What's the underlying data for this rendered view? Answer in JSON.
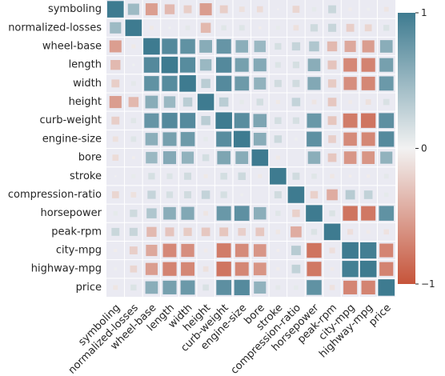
{
  "chart_data": {
    "type": "heatmap",
    "variant": "size-and-color correlation matrix",
    "variables": [
      "symboling",
      "normalized-losses",
      "wheel-base",
      "length",
      "width",
      "height",
      "curb-weight",
      "engine-size",
      "bore",
      "stroke",
      "compression-ratio",
      "horsepower",
      "peak-rpm",
      "city-mpg",
      "highway-mpg",
      "price"
    ],
    "values": [
      [
        1.0,
        0.47,
        -0.53,
        -0.36,
        -0.23,
        -0.54,
        -0.23,
        -0.11,
        -0.14,
        -0.01,
        -0.18,
        0.07,
        0.23,
        -0.04,
        0.03,
        -0.08
      ],
      [
        0.47,
        1.0,
        -0.06,
        0.02,
        0.08,
        -0.37,
        0.1,
        0.11,
        -0.03,
        0.06,
        -0.11,
        0.2,
        0.24,
        -0.23,
        -0.18,
        0.13
      ],
      [
        -0.53,
        -0.06,
        1.0,
        0.88,
        0.81,
        0.59,
        0.78,
        0.57,
        0.49,
        0.16,
        0.25,
        0.37,
        -0.36,
        -0.47,
        -0.54,
        0.58
      ],
      [
        -0.36,
        0.02,
        0.88,
        1.0,
        0.86,
        0.49,
        0.88,
        0.69,
        0.61,
        0.12,
        0.16,
        0.58,
        -0.29,
        -0.67,
        -0.7,
        0.69
      ],
      [
        -0.23,
        0.08,
        0.81,
        0.86,
        1.0,
        0.31,
        0.87,
        0.74,
        0.54,
        0.19,
        0.19,
        0.62,
        -0.25,
        -0.63,
        -0.68,
        0.75
      ],
      [
        -0.54,
        -0.37,
        0.59,
        0.49,
        0.31,
        1.0,
        0.31,
        0.07,
        0.17,
        -0.06,
        0.26,
        -0.08,
        -0.27,
        -0.05,
        -0.11,
        0.14
      ],
      [
        -0.23,
        0.1,
        0.78,
        0.88,
        0.87,
        0.31,
        1.0,
        0.85,
        0.65,
        0.17,
        0.16,
        0.76,
        -0.28,
        -0.75,
        -0.79,
        0.83
      ],
      [
        -0.11,
        0.11,
        0.57,
        0.69,
        0.74,
        0.07,
        0.85,
        1.0,
        0.59,
        0.21,
        0.03,
        0.82,
        -0.22,
        -0.65,
        -0.68,
        0.87
      ],
      [
        -0.14,
        -0.03,
        0.49,
        0.61,
        0.54,
        0.17,
        0.65,
        0.59,
        1.0,
        -0.06,
        0.0,
        0.57,
        -0.27,
        -0.58,
        -0.59,
        0.54
      ],
      [
        -0.01,
        0.06,
        0.16,
        0.12,
        0.19,
        -0.06,
        0.17,
        0.21,
        -0.06,
        1.0,
        0.19,
        0.1,
        -0.07,
        -0.03,
        -0.04,
        0.08
      ],
      [
        -0.18,
        -0.11,
        0.25,
        0.16,
        0.19,
        0.26,
        0.16,
        0.03,
        0.0,
        0.19,
        1.0,
        -0.21,
        -0.44,
        0.33,
        0.27,
        0.07
      ],
      [
        0.07,
        0.2,
        0.37,
        0.58,
        0.62,
        -0.08,
        0.76,
        0.82,
        0.57,
        0.1,
        -0.21,
        1.0,
        0.13,
        -0.8,
        -0.77,
        0.81
      ],
      [
        0.23,
        0.24,
        -0.36,
        -0.29,
        -0.25,
        -0.27,
        -0.28,
        -0.22,
        -0.27,
        -0.07,
        -0.44,
        0.13,
        1.0,
        -0.12,
        -0.05,
        -0.1
      ],
      [
        -0.04,
        -0.23,
        -0.47,
        -0.67,
        -0.63,
        -0.05,
        -0.75,
        -0.65,
        -0.58,
        -0.03,
        0.33,
        -0.8,
        -0.12,
        1.0,
        0.97,
        -0.69
      ],
      [
        0.03,
        -0.18,
        -0.54,
        -0.7,
        -0.68,
        -0.11,
        -0.79,
        -0.68,
        -0.59,
        -0.04,
        0.27,
        -0.77,
        -0.05,
        0.97,
        1.0,
        -0.7
      ],
      [
        -0.08,
        0.13,
        0.58,
        0.69,
        0.75,
        0.14,
        0.83,
        0.87,
        0.54,
        0.08,
        0.07,
        0.81,
        -0.1,
        -0.69,
        -0.7,
        1.0
      ]
    ],
    "colorbar": {
      "range": [
        -1,
        1
      ],
      "ticks": [
        {
          "label": "1",
          "value": 1
        },
        {
          "label": "0",
          "value": 0
        },
        {
          "label": "−1",
          "value": -1
        }
      ],
      "negative_color": "#c6543a",
      "neutral_color": "#f2f2f2",
      "positive_color": "#3e7b90"
    },
    "cell_background": "#eaeaf2",
    "marker": "square sized by absolute correlation",
    "title": "",
    "xlabel": "",
    "ylabel": ""
  }
}
